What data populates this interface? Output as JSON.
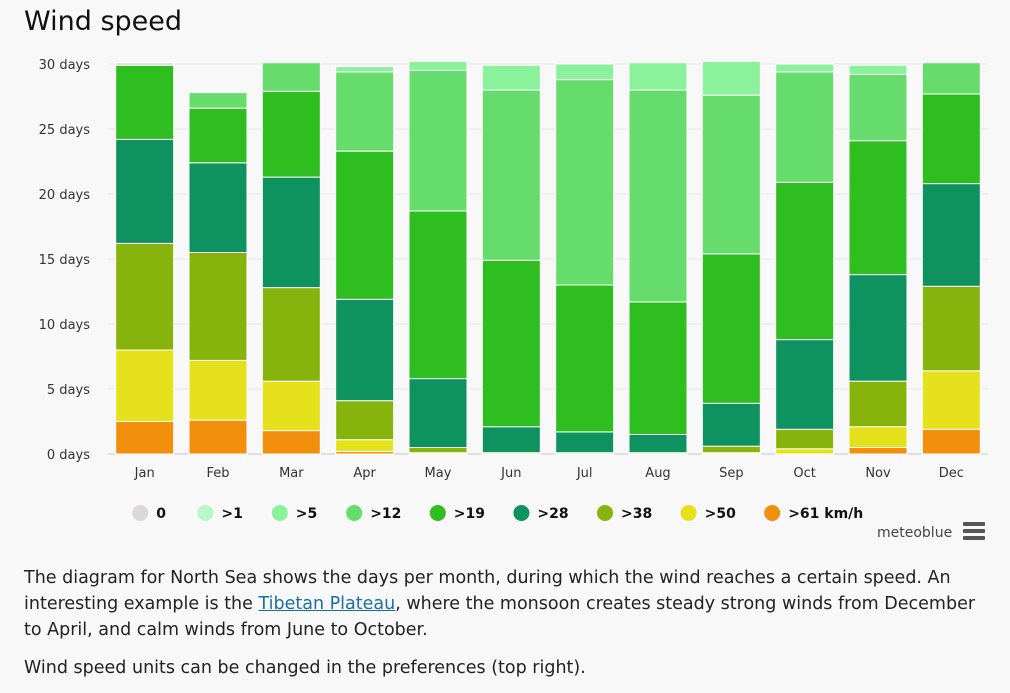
{
  "title": "Wind speed",
  "credit": "meteoblue",
  "description": {
    "part1": "The diagram for North Sea shows the days per month, during which the wind reaches a certain speed. An interesting example is the ",
    "link": "Tibetan Plateau",
    "part2": ", where the monsoon creates steady strong winds from December to April, and calm winds from June to October.",
    "note": "Wind speed units can be changed in the preferences (top right)."
  },
  "chart_data": {
    "type": "bar",
    "stacked": true,
    "categories": [
      "Jan",
      "Feb",
      "Mar",
      "Apr",
      "May",
      "Jun",
      "Jul",
      "Aug",
      "Sep",
      "Oct",
      "Nov",
      "Dec"
    ],
    "ylim": [
      0,
      30
    ],
    "yticks": [
      0,
      5,
      10,
      15,
      20,
      25,
      30
    ],
    "ytick_labels": [
      "0 days",
      "5 days",
      "10 days",
      "15 days",
      "20 days",
      "25 days",
      "30 days"
    ],
    "grid": true,
    "legend_position": "bottom",
    "series": [
      {
        "name": ">61 km/h",
        "legend_label": ">61 km/h",
        "color": "#f28f0c",
        "values": [
          2.5,
          2.6,
          1.8,
          0.2,
          0,
          0,
          0,
          0,
          0,
          0,
          0.5,
          1.9
        ]
      },
      {
        "name": ">50",
        "legend_label": ">50",
        "color": "#e5e21c",
        "values": [
          5.5,
          4.6,
          3.8,
          0.9,
          0.1,
          0,
          0,
          0,
          0.1,
          0.4,
          1.6,
          4.5
        ]
      },
      {
        "name": ">38",
        "legend_label": ">38",
        "color": "#87b40c",
        "values": [
          8.2,
          8.3,
          7.2,
          3.0,
          0.4,
          0.1,
          0.1,
          0.1,
          0.5,
          1.5,
          3.5,
          6.5
        ]
      },
      {
        "name": ">28",
        "legend_label": ">28",
        "color": "#0e9360",
        "values": [
          8.0,
          6.9,
          8.5,
          7.8,
          5.3,
          2.0,
          1.6,
          1.4,
          3.3,
          6.9,
          8.2,
          7.9
        ]
      },
      {
        "name": ">19",
        "legend_label": ">19",
        "color": "#2fbe1f",
        "values": [
          5.7,
          4.2,
          6.6,
          11.4,
          12.9,
          12.8,
          11.3,
          10.2,
          11.5,
          12.1,
          10.3,
          6.9
        ]
      },
      {
        "name": ">12",
        "legend_label": ">12",
        "color": "#65dc6c",
        "values": [
          0,
          0,
          0,
          0,
          0,
          13.1,
          15.8,
          16.3,
          12.2,
          0,
          0,
          0
        ]
      },
      {
        "name": ">12",
        "legend_label": ">12",
        "color": "#65dc6c",
        "values": [
          0,
          1.2,
          2.2,
          6.1,
          10.8,
          0,
          0,
          0,
          0,
          8.5,
          5.1,
          2.4
        ],
        "legend": false
      },
      {
        "name": ">5",
        "legend_label": ">5",
        "color": "#8bf29c",
        "values": [
          0,
          0,
          0,
          0.4,
          0.7,
          1.9,
          1.2,
          2.1,
          2.6,
          0.6,
          0.7,
          0
        ]
      },
      {
        "name": ">1",
        "legend_label": ">1",
        "color": "#b8f7c8",
        "values": [
          0,
          0,
          0,
          0,
          0,
          0,
          0,
          0,
          0,
          0,
          0,
          0
        ]
      },
      {
        "name": "0",
        "legend_label": "0",
        "color": "#dcd8da",
        "values": [
          0.2,
          0,
          0,
          0,
          0,
          0,
          0,
          0,
          0,
          0,
          0,
          0
        ]
      }
    ],
    "legend": [
      {
        "label": "0",
        "color": "#dcd8da"
      },
      {
        "label": ">1",
        "color": "#b8f7c8"
      },
      {
        "label": ">5",
        "color": "#8bf29c"
      },
      {
        "label": ">12",
        "color": "#65dc6c"
      },
      {
        "label": ">19",
        "color": "#2fbe1f"
      },
      {
        "label": ">28",
        "color": "#0e9360"
      },
      {
        "label": ">38",
        "color": "#87b40c"
      },
      {
        "label": ">50",
        "color": "#e5e21c"
      },
      {
        "label": ">61 km/h",
        "color": "#f28f0c"
      }
    ]
  }
}
